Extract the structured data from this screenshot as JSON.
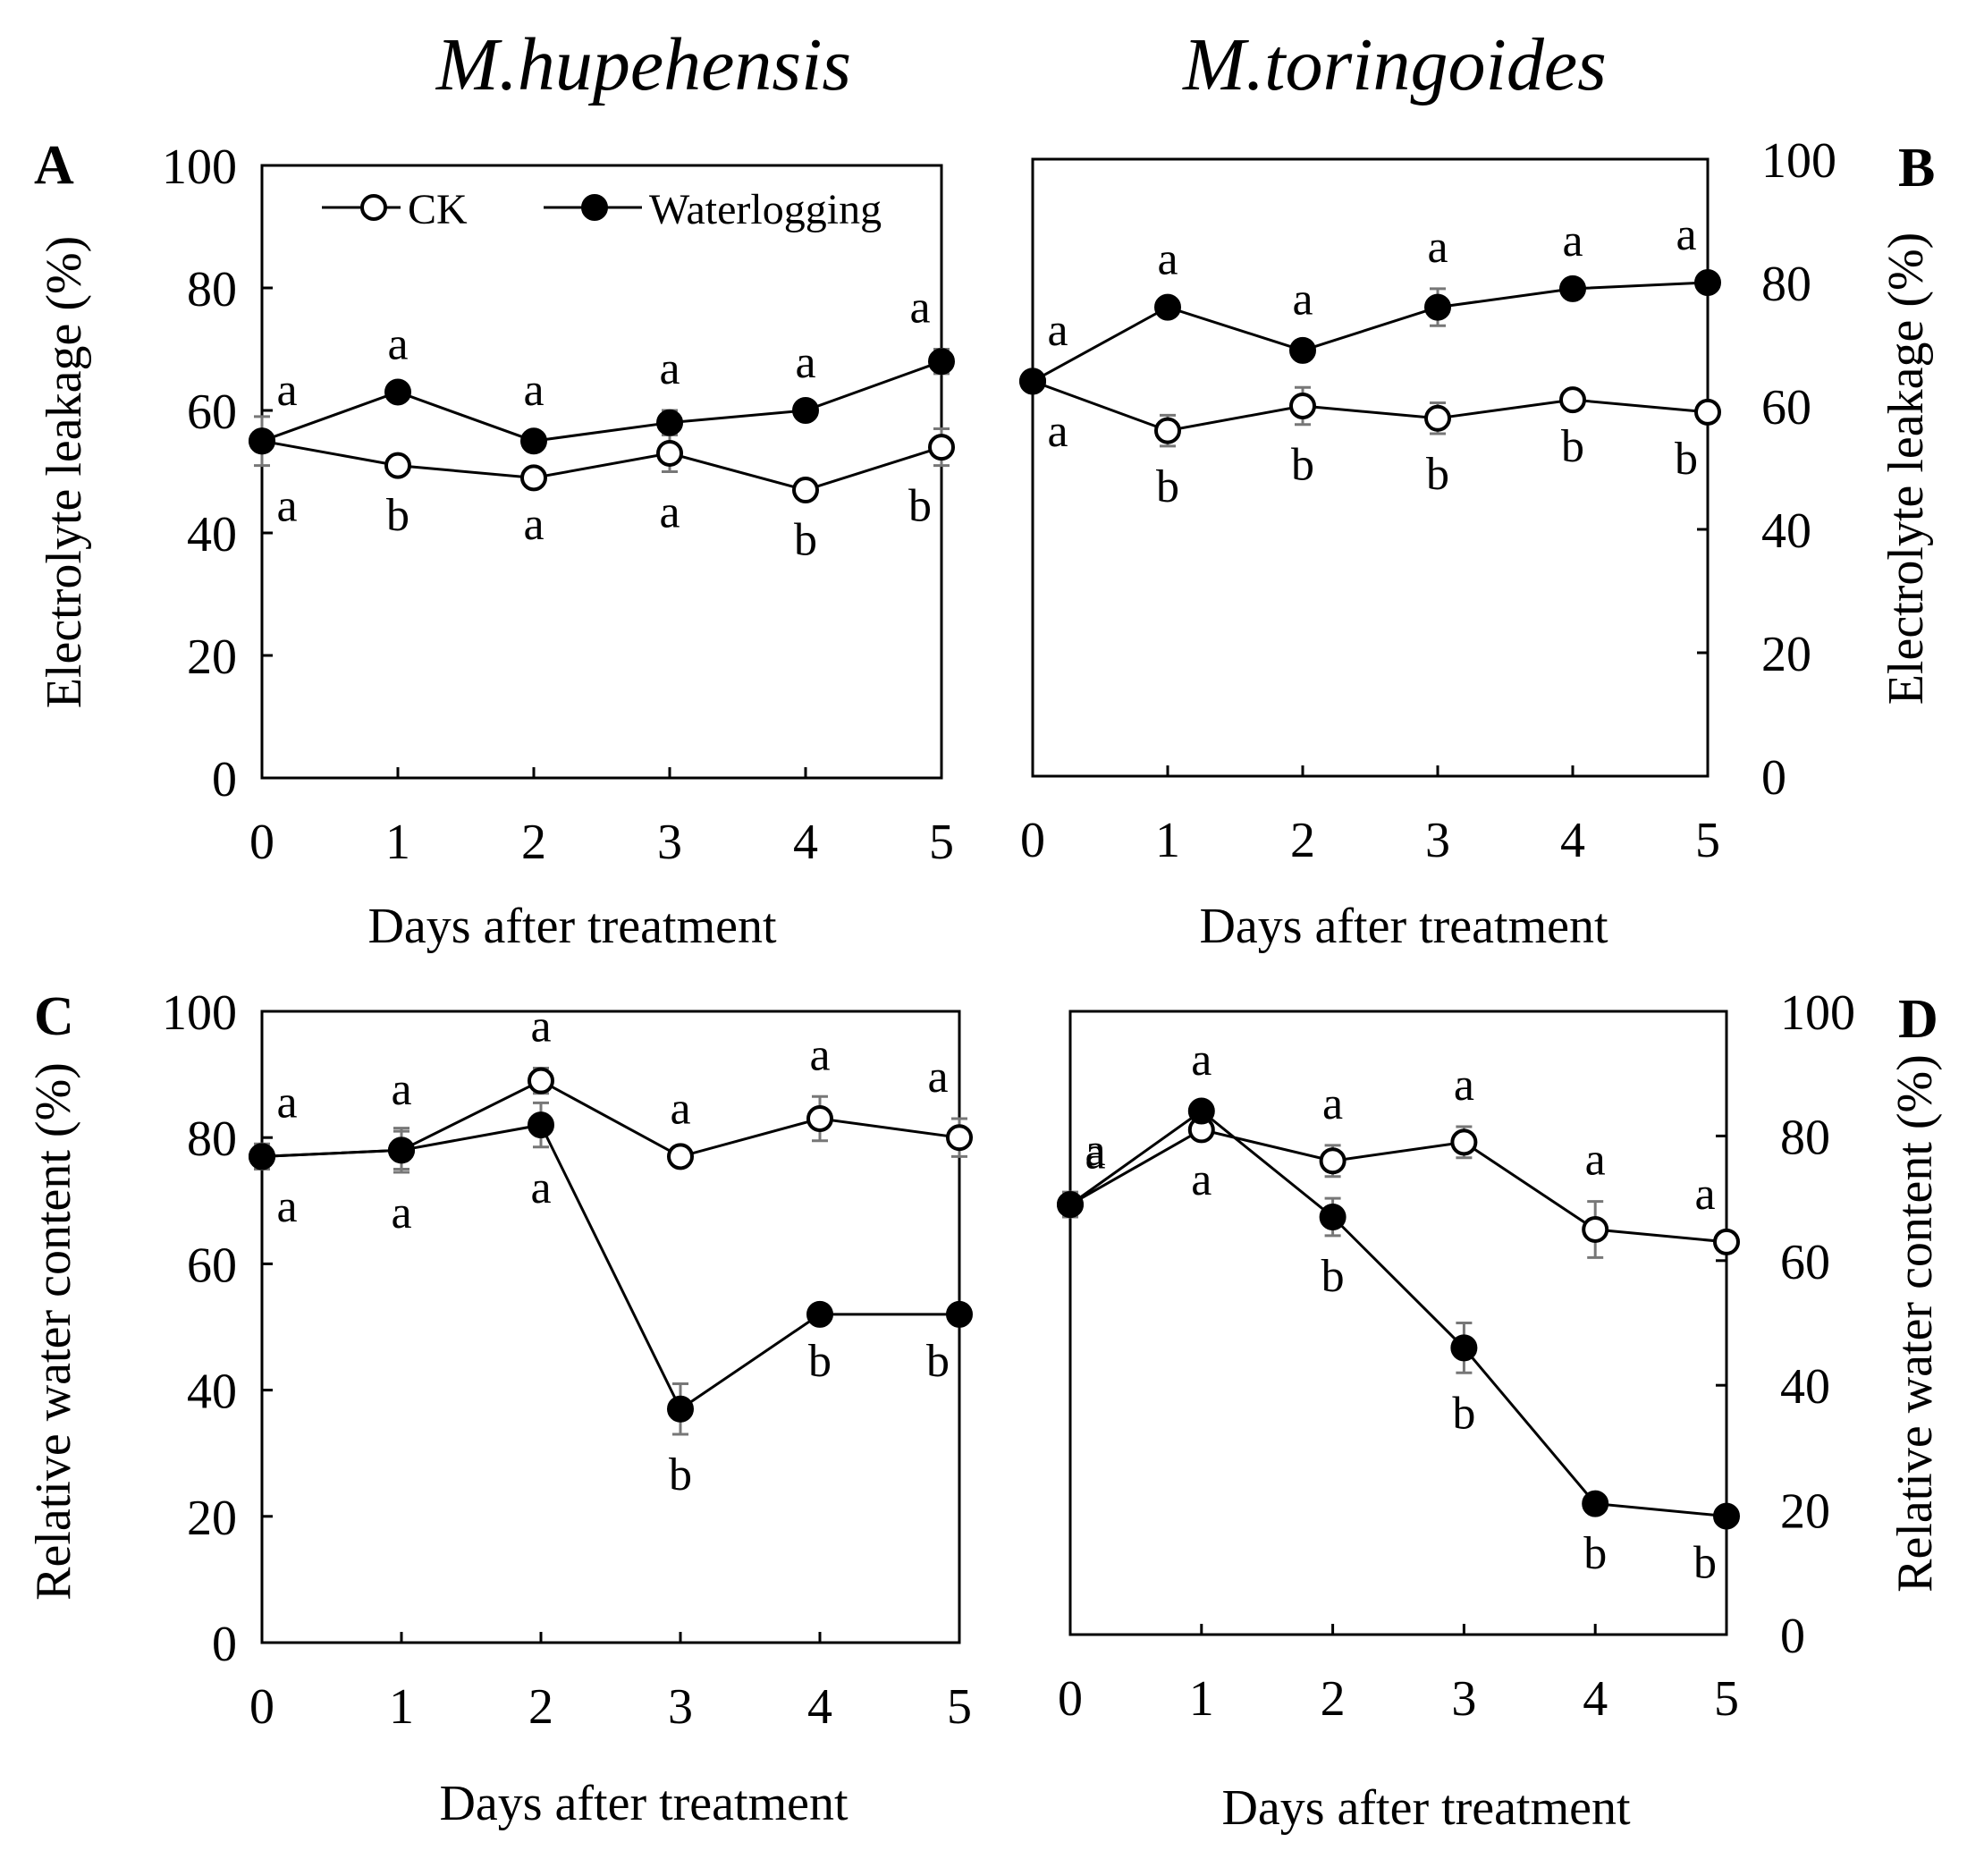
{
  "figure": {
    "species_left": "M.hupehensis",
    "species_right": "M.toringoides"
  },
  "legend": {
    "ck": "CK",
    "waterlogging": "Waterlogging"
  },
  "colors": {
    "ink": "#000000",
    "ck_fill": "#ffffff",
    "wl_fill": "#000000",
    "error_bar": "#777777"
  },
  "chart_data": [
    {
      "id": "A",
      "panel": "A",
      "type": "line",
      "species": "M.hupehensis",
      "xlabel": "Days after treatment",
      "ylabel": "Electrolyte leakage (%)",
      "y_axis_side": "left",
      "x": [
        0,
        1,
        2,
        3,
        4,
        5
      ],
      "x_ticks": [
        "0",
        "1",
        "2",
        "3",
        "4",
        "5"
      ],
      "ylim": [
        0,
        100
      ],
      "y_ticks": [
        "0",
        "20",
        "40",
        "60",
        "80",
        "100"
      ],
      "legend": "top-left",
      "series": [
        {
          "name": "CK",
          "values": [
            55,
            51,
            49,
            53,
            47,
            54
          ],
          "errors": [
            4,
            1.5,
            1,
            3,
            1.5,
            3
          ],
          "labels": [
            "a",
            "b",
            "a",
            "a",
            "b",
            "b"
          ],
          "label_pos": [
            "below",
            "below",
            "below",
            "below",
            "below",
            "below"
          ]
        },
        {
          "name": "Waterlogging",
          "values": [
            55,
            63,
            55,
            58,
            60,
            68
          ],
          "errors": [
            1.5,
            1,
            1.5,
            2,
            1,
            2
          ],
          "labels": [
            "a",
            "a",
            "a",
            "a",
            "a",
            "a"
          ],
          "label_pos": [
            "above",
            "above",
            "above",
            "above",
            "above",
            "above"
          ]
        }
      ]
    },
    {
      "id": "B",
      "panel": "B",
      "type": "line",
      "species": "M.toringoides",
      "xlabel": "Days after treatment",
      "ylabel": "Electrolyte leakage (%)",
      "y_axis_side": "right",
      "x": [
        0,
        1,
        2,
        3,
        4,
        5
      ],
      "x_ticks": [
        "0",
        "1",
        "2",
        "3",
        "4",
        "5"
      ],
      "ylim": [
        0,
        100
      ],
      "y_ticks": [
        "0",
        "20",
        "40",
        "60",
        "80",
        "100"
      ],
      "series": [
        {
          "name": "CK",
          "values": [
            64,
            56,
            60,
            58,
            61,
            59
          ],
          "errors": [
            1.5,
            2.5,
            3,
            2.5,
            1,
            1
          ],
          "labels": [
            "a",
            "b",
            "b",
            "b",
            "b",
            "b"
          ],
          "label_pos": [
            "below",
            "below",
            "below",
            "below",
            "below",
            "below"
          ]
        },
        {
          "name": "Waterlogging",
          "values": [
            64,
            76,
            69,
            76,
            79,
            80
          ],
          "errors": [
            1.5,
            1,
            1.5,
            3,
            1,
            1
          ],
          "labels": [
            "a",
            "a",
            "a",
            "a",
            "a",
            "a"
          ],
          "label_pos": [
            "above",
            "above",
            "above",
            "above",
            "above",
            "above"
          ]
        }
      ]
    },
    {
      "id": "C",
      "panel": "C",
      "type": "line",
      "species": "M.hupehensis",
      "xlabel": "Days after treatment",
      "ylabel": "Relative water content (%)",
      "y_axis_side": "left",
      "x": [
        0,
        1,
        2,
        3,
        4,
        5
      ],
      "x_ticks": [
        "0",
        "1",
        "2",
        "3",
        "4",
        "5"
      ],
      "ylim": [
        0,
        100
      ],
      "y_ticks": [
        "0",
        "20",
        "40",
        "60",
        "80",
        "100"
      ],
      "series": [
        {
          "name": "CK",
          "values": [
            77,
            78,
            89,
            77,
            83,
            80
          ],
          "errors": [
            2,
            3,
            2,
            1,
            3.5,
            3
          ],
          "labels": [
            "a",
            "a",
            "a",
            "a",
            "a",
            "a"
          ],
          "label_pos": [
            "above",
            "above",
            "above",
            "above",
            "above",
            "above"
          ]
        },
        {
          "name": "Waterlogging",
          "values": [
            77,
            78,
            82,
            37,
            52,
            52
          ],
          "errors": [
            1.5,
            3.5,
            3.5,
            4,
            1,
            1
          ],
          "labels": [
            "a",
            "a",
            "a",
            "b",
            "b",
            "b"
          ],
          "label_pos": [
            "below",
            "below",
            "below",
            "below",
            "below",
            "below"
          ]
        }
      ]
    },
    {
      "id": "D",
      "panel": "D",
      "type": "line",
      "species": "M.toringoides",
      "xlabel": "Days after treatment",
      "ylabel": "Relative water content (%)",
      "y_axis_side": "right",
      "x": [
        0,
        1,
        2,
        3,
        4,
        5
      ],
      "x_ticks": [
        "0",
        "1",
        "2",
        "3",
        "4",
        "5"
      ],
      "ylim": [
        0,
        100
      ],
      "y_ticks": [
        "0",
        "20",
        "40",
        "60",
        "80",
        "100"
      ],
      "series": [
        {
          "name": "CK",
          "values": [
            69,
            81,
            76,
            79,
            65,
            63
          ],
          "errors": [
            2,
            1.5,
            2.5,
            2.5,
            4.5,
            1
          ],
          "labels": [
            "a",
            "a",
            "a",
            "a",
            "a",
            "a"
          ],
          "label_pos": [
            "above",
            "below",
            "above",
            "above",
            "above",
            "above"
          ]
        },
        {
          "name": "Waterlogging",
          "values": [
            69,
            84,
            67,
            46,
            21,
            19
          ],
          "errors": [
            1.5,
            1.5,
            3,
            4,
            1.5,
            1
          ],
          "labels": [
            "a",
            "a",
            "b",
            "b",
            "b",
            "b"
          ],
          "label_pos": [
            "above",
            "above",
            "below",
            "below",
            "below",
            "below"
          ]
        }
      ]
    }
  ]
}
